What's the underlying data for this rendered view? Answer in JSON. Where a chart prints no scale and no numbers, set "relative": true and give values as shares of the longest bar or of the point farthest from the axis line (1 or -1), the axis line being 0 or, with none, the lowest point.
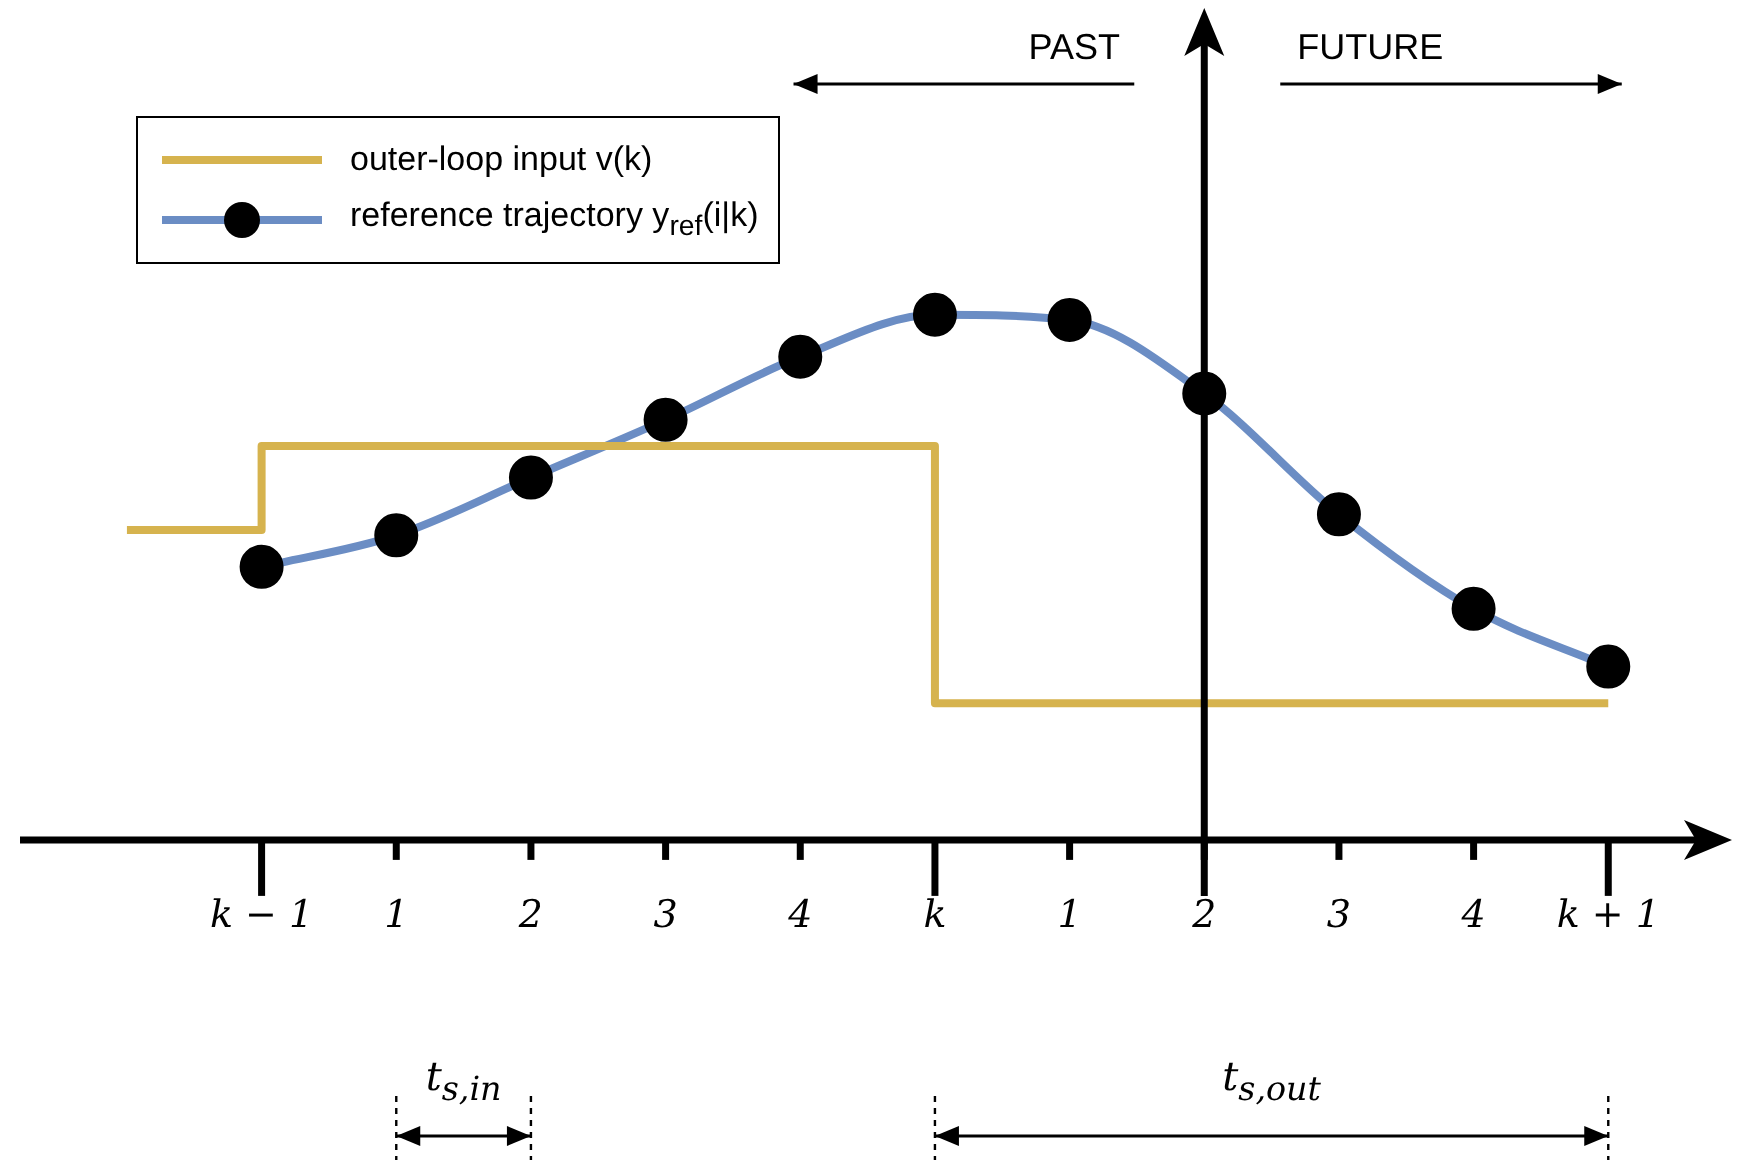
{
  "chart_data": {
    "type": "line",
    "relative": true,
    "legend": "top left",
    "categories": [
      null,
      "k − 1",
      "1",
      "2",
      "3",
      "4",
      "k",
      "1",
      "2",
      "3",
      "4",
      "k + 1"
    ],
    "series": [
      {
        "name": "outer-loop input v(k)",
        "type": "step",
        "color": "#d6b34e",
        "values": [
          0.59,
          0.75,
          0.75,
          0.75,
          0.75,
          0.75,
          0.26,
          0.26,
          0.26,
          0.26,
          0.26,
          0.26
        ],
        "marker": "none"
      },
      {
        "name": "reference trajectory y$_{ref}$(i|k)",
        "color": "#6b8dc4",
        "marker": "circle",
        "values": [
          null,
          0.52,
          0.58,
          0.69,
          0.8,
          0.92,
          1,
          0.99,
          0.85,
          0.62,
          0.44,
          0.33
        ]
      }
    ],
    "annotations": [
      "PAST",
      "FUTURE",
      "t$_{s,in}$",
      "t$_{s,out}$"
    ]
  }
}
